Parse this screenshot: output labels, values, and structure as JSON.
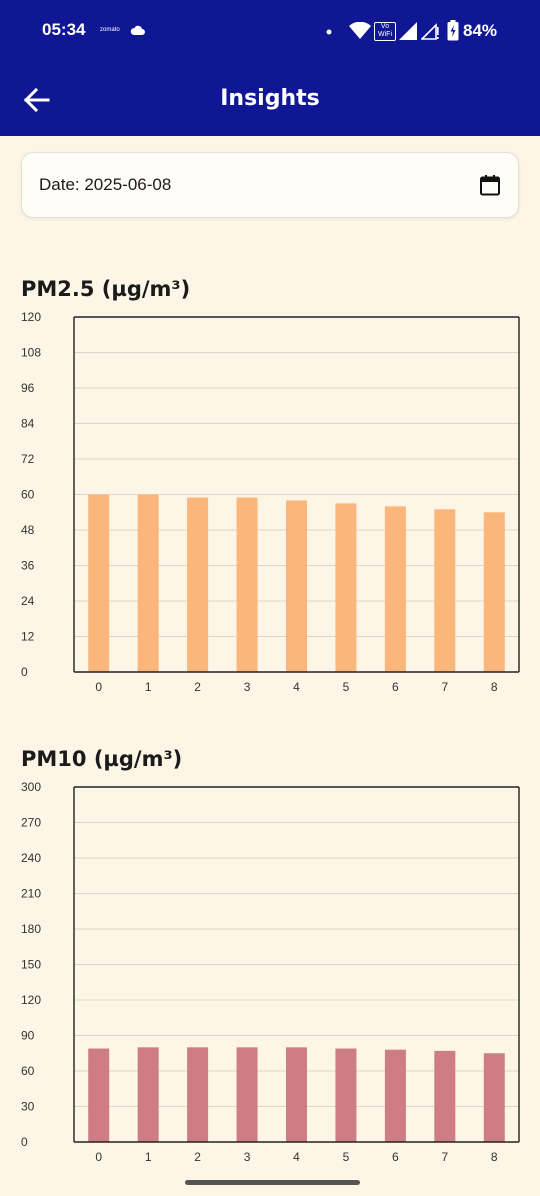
{
  "status_bar": {
    "time": "05:34",
    "small_text": "zomato",
    "vowifi_line1": "Vo",
    "vowifi_line2": "WiFi",
    "battery": "84%"
  },
  "app_bar": {
    "title": "Insights"
  },
  "date_picker": {
    "label": "Date: 2025-06-08"
  },
  "colors": {
    "header": "#101794",
    "background": "#fdf6e6",
    "pm25_bar": "#fbb67c",
    "pm10_bar": "#cd7d83"
  },
  "chart_data": [
    {
      "type": "bar",
      "title": "PM2.5 (µg/m³)",
      "categories": [
        "0",
        "1",
        "2",
        "3",
        "4",
        "5",
        "6",
        "7",
        "8"
      ],
      "values": [
        60,
        60,
        59,
        59,
        58,
        57,
        56,
        55,
        54
      ],
      "ylim": [
        0,
        120
      ],
      "yticks": [
        "0",
        "12",
        "24",
        "36",
        "48",
        "60",
        "72",
        "84",
        "96",
        "108",
        "120"
      ],
      "grid": true
    },
    {
      "type": "bar",
      "title": "PM10 (µg/m³)",
      "categories": [
        "0",
        "1",
        "2",
        "3",
        "4",
        "5",
        "6",
        "7",
        "8"
      ],
      "values": [
        79,
        80,
        80,
        80,
        80,
        79,
        78,
        77,
        75
      ],
      "ylim": [
        0,
        300
      ],
      "yticks": [
        "0",
        "30",
        "60",
        "90",
        "120",
        "150",
        "180",
        "210",
        "240",
        "270",
        "300"
      ],
      "grid": true
    }
  ]
}
